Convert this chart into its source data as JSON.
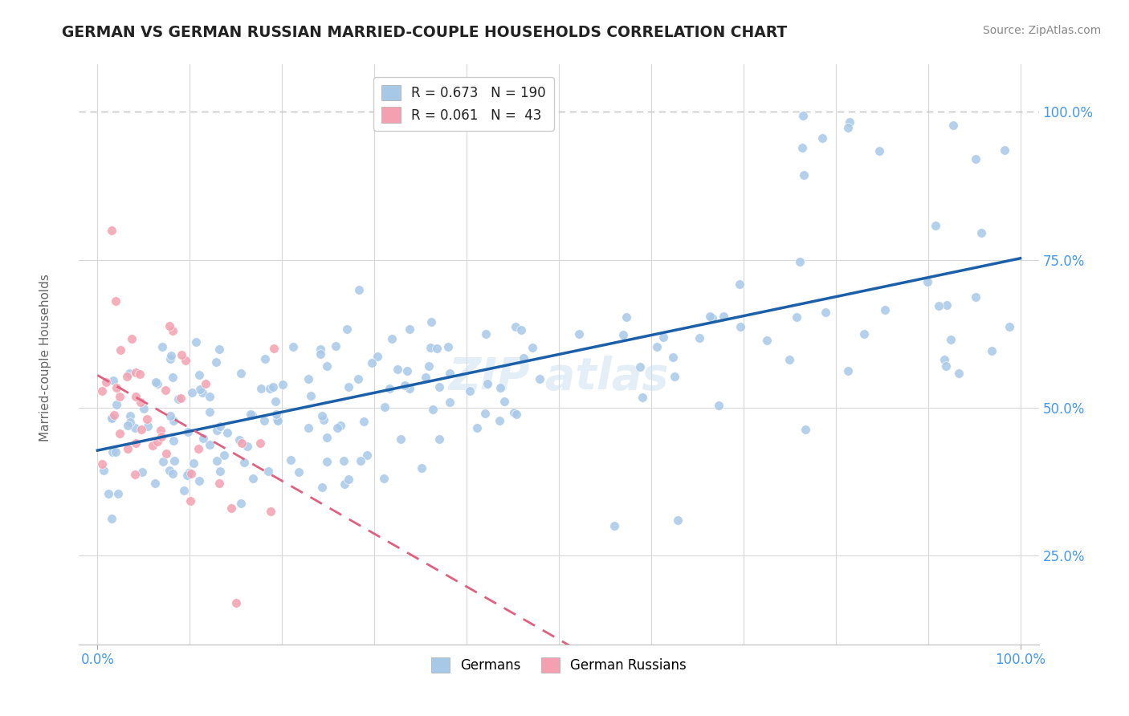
{
  "title": "GERMAN VS GERMAN RUSSIAN MARRIED-COUPLE HOUSEHOLDS CORRELATION CHART",
  "source_text": "Source: ZipAtlas.com",
  "ylabel": "Married-couple Households",
  "blue_color": "#a8c8e8",
  "pink_color": "#f4a0b0",
  "blue_line_color": "#1a5fa8",
  "pink_line_color": "#e06080",
  "pink_line_dash": [
    6,
    4
  ],
  "grid_color": "#d8d8d8",
  "dashed_top_color": "#c0c0c0",
  "title_color": "#222222",
  "source_color": "#888888",
  "axis_label_color": "#666666",
  "tick_color": "#4499ee",
  "legend_r1": "R = 0.673",
  "legend_n1": "N = 190",
  "legend_r2": "R = 0.061",
  "legend_n2": "N =  43",
  "watermark": "ZIPatlas",
  "blue_R": 0.673,
  "pink_R": 0.061,
  "blue_N": 190,
  "pink_N": 43,
  "xlim": [
    -0.02,
    1.02
  ],
  "ylim": [
    0.1,
    1.08
  ],
  "yticks": [
    0.25,
    0.5,
    0.75,
    1.0
  ],
  "ytick_labels": [
    "25.0%",
    "50.0%",
    "75.0%",
    "100.0%"
  ]
}
